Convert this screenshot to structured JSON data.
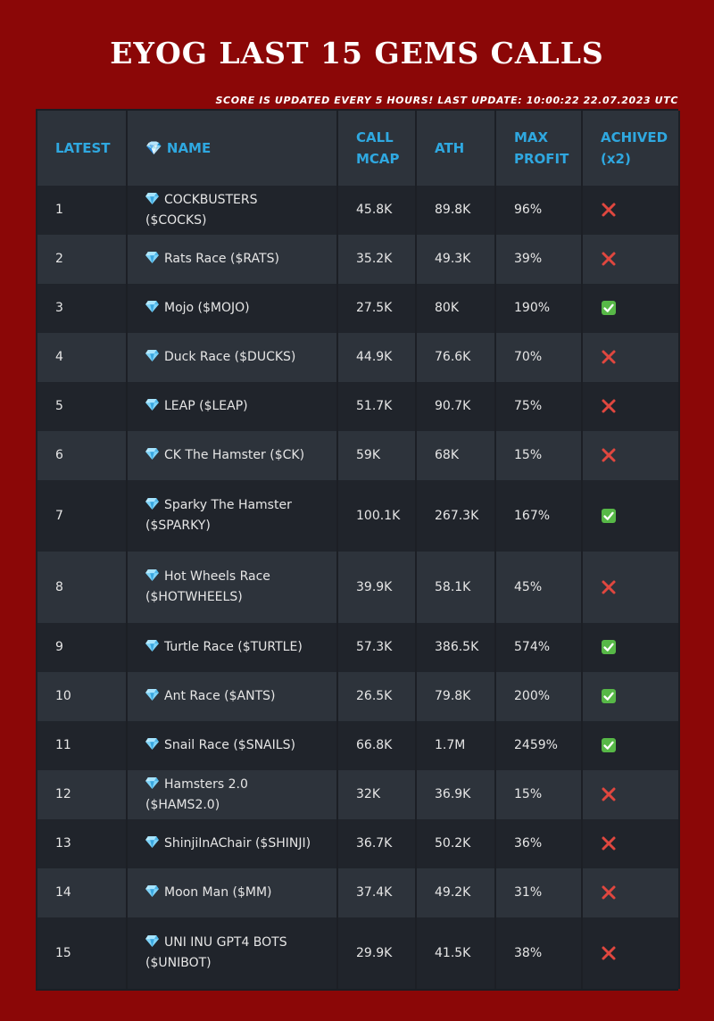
{
  "title": "EYOG LAST 15 GEMS CALLS",
  "update_note": "SCORE IS UPDATED EVERY 5 HOURS! LAST UPDATE: 10:00:22 22.07.2023 UTC",
  "columns": [
    "LATEST",
    "💎 NAME",
    "CALL MCAP",
    "ATH",
    "MAX PROFIT",
    "ACHIVED (x2)"
  ],
  "colors": {
    "background": "#8b0707",
    "header_text": "#2fa8e0",
    "row_dark": "#20242b",
    "row_light": "#2d333b",
    "cross": "#e0473f",
    "check": "#57b847"
  },
  "rows": [
    {
      "latest": "1",
      "name": "COCKBUSTERS ($COCKS)",
      "call_mcap": "45.8K",
      "ath": "89.8K",
      "max_profit": "96%",
      "achieved": false
    },
    {
      "latest": "2",
      "name": "Rats Race ($RATS)",
      "call_mcap": "35.2K",
      "ath": "49.3K",
      "max_profit": "39%",
      "achieved": false
    },
    {
      "latest": "3",
      "name": "Mojo ($MOJO)",
      "call_mcap": "27.5K",
      "ath": "80K",
      "max_profit": "190%",
      "achieved": true
    },
    {
      "latest": "4",
      "name": "Duck Race ($DUCKS)",
      "call_mcap": "44.9K",
      "ath": "76.6K",
      "max_profit": "70%",
      "achieved": false
    },
    {
      "latest": "5",
      "name": "LEAP ($LEAP)",
      "call_mcap": "51.7K",
      "ath": "90.7K",
      "max_profit": "75%",
      "achieved": false
    },
    {
      "latest": "6",
      "name": "CK The Hamster ($CK)",
      "call_mcap": "59K",
      "ath": "68K",
      "max_profit": "15%",
      "achieved": false
    },
    {
      "latest": "7",
      "name": "Sparky The Hamster ($SPARKY)",
      "call_mcap": "100.1K",
      "ath": "267.3K",
      "max_profit": "167%",
      "achieved": true
    },
    {
      "latest": "8",
      "name": "Hot Wheels Race ($HOTWHEELS)",
      "call_mcap": "39.9K",
      "ath": "58.1K",
      "max_profit": "45%",
      "achieved": false
    },
    {
      "latest": "9",
      "name": "Turtle Race ($TURTLE)",
      "call_mcap": "57.3K",
      "ath": "386.5K",
      "max_profit": "574%",
      "achieved": true
    },
    {
      "latest": "10",
      "name": "Ant Race ($ANTS)",
      "call_mcap": "26.5K",
      "ath": "79.8K",
      "max_profit": "200%",
      "achieved": true
    },
    {
      "latest": "11",
      "name": "Snail Race ($SNAILS)",
      "call_mcap": "66.8K",
      "ath": "1.7M",
      "max_profit": "2459%",
      "achieved": true
    },
    {
      "latest": "12",
      "name": "Hamsters 2.0 ($HAMS2.0)",
      "call_mcap": "32K",
      "ath": "36.9K",
      "max_profit": "15%",
      "achieved": false
    },
    {
      "latest": "13",
      "name": "ShinjiInAChair ($SHINJI)",
      "call_mcap": "36.7K",
      "ath": "50.2K",
      "max_profit": "36%",
      "achieved": false
    },
    {
      "latest": "14",
      "name": "Moon Man ($MM)",
      "call_mcap": "37.4K",
      "ath": "49.2K",
      "max_profit": "31%",
      "achieved": false
    },
    {
      "latest": "15",
      "name": "UNI INU GPT4 BOTS ($UNIBOT)",
      "call_mcap": "29.9K",
      "ath": "41.5K",
      "max_profit": "38%",
      "achieved": false
    }
  ]
}
